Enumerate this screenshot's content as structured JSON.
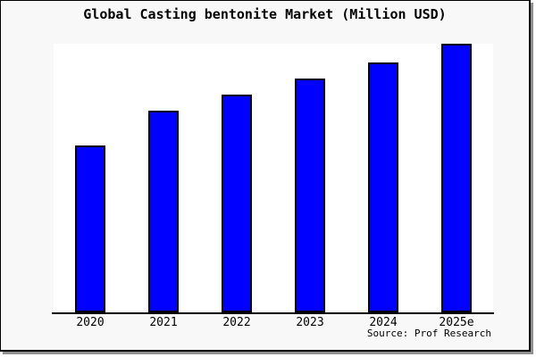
{
  "title": "Global Casting bentonite Market (Million USD)",
  "source": "Source: Prof Research",
  "chart_data": {
    "type": "bar",
    "title": "Global Casting bentonite Market (Million USD)",
    "categories": [
      "2020",
      "2021",
      "2022",
      "2023",
      "2024",
      "2025e"
    ],
    "values": [
      62,
      75,
      81,
      87,
      93,
      100
    ],
    "values_note": "no y-axis shown in figure; values are relative bar heights with 2025e = 100",
    "xlabel": "",
    "ylabel": "",
    "ylim": [
      0,
      100
    ],
    "grid": false,
    "legend": null,
    "bar_color": "#0000FF",
    "bar_border_color": "#000000",
    "plot_background": "#FFFFFF",
    "background": "#F8F8F8",
    "frame_border_color": "#000000",
    "frame_shadow_color": "#909090",
    "source": "Source: Prof Research"
  }
}
